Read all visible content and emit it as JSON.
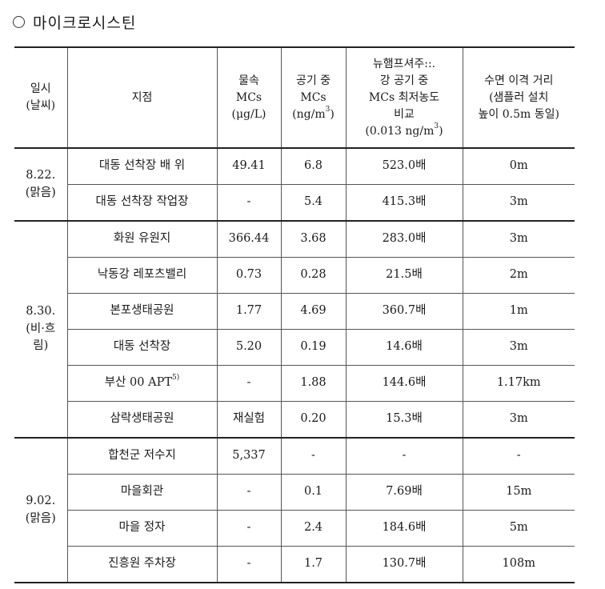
{
  "heading": "마이크로시스틴",
  "header": {
    "col0": [
      "일시",
      "(날씨)"
    ],
    "col1": "지점",
    "col2": [
      "물속",
      "MCs",
      "(μg/L)"
    ],
    "col3": [
      "공기 중",
      "MCs",
      "(ng/m",
      "3",
      ")"
    ],
    "col4": [
      "뉴햄프셔주::.",
      "강 공기 중",
      "MCs 최저농도",
      "비교",
      "(0.013 ng/m",
      "3",
      ")"
    ],
    "col5": [
      "수면 이격 거리",
      "(샘플러 설치",
      "높이 0.5m 동일)"
    ]
  },
  "groups": [
    {
      "date": [
        "8.22.",
        "(맑음)"
      ],
      "rows": [
        {
          "site": "대동 선착장 배 위",
          "water": "49.41",
          "air": "6.8",
          "ratio": "523.0배",
          "dist": "0m"
        },
        {
          "site": "대동 선착장 작업장",
          "water": "-",
          "air": "5.4",
          "ratio": "415.3배",
          "dist": "3m"
        }
      ]
    },
    {
      "date": [
        "8.30.",
        "(비·흐",
        "림)"
      ],
      "rows": [
        {
          "site": "화원 유원지",
          "water": "366.44",
          "air": "3.68",
          "ratio": "283.0배",
          "dist": "3m"
        },
        {
          "site": "낙동강 레포츠밸리",
          "water": "0.73",
          "air": "0.28",
          "ratio": "21.5배",
          "dist": "2m"
        },
        {
          "site": "본포생태공원",
          "water": "1.77",
          "air": "4.69",
          "ratio": "360.7배",
          "dist": "1m"
        },
        {
          "site": "대동 선착장",
          "water": "5.20",
          "air": "0.19",
          "ratio": "14.6배",
          "dist": "3m"
        },
        {
          "site": "부산 00 APT",
          "site_sup": "5)",
          "water": "-",
          "air": "1.88",
          "ratio": "144.6배",
          "dist": "1.17km"
        },
        {
          "site": "삼락생태공원",
          "water": "재실험",
          "air": "0.20",
          "ratio": "15.3배",
          "dist": "3m"
        }
      ]
    },
    {
      "date": [
        "9.02.",
        "(맑음)"
      ],
      "rows": [
        {
          "site": "합천군 저수지",
          "water": "5,337",
          "air": "-",
          "ratio": "-",
          "dist": "-"
        },
        {
          "site": "마을회관",
          "water": "-",
          "air": "0.1",
          "ratio": "7.69배",
          "dist": "15m"
        },
        {
          "site": "마을 정자",
          "water": "-",
          "air": "2.4",
          "ratio": "184.6배",
          "dist": "5m"
        },
        {
          "site": "진흥원 주차장",
          "water": "-",
          "air": "1.7",
          "ratio": "130.7배",
          "dist": "108m"
        }
      ]
    }
  ]
}
